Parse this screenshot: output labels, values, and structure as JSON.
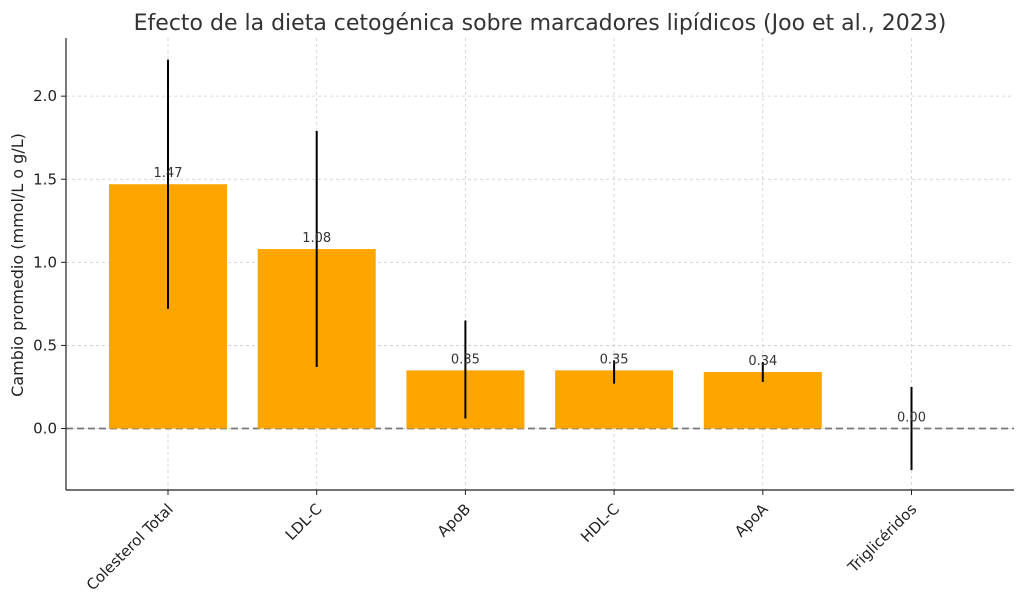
{
  "chart_data": {
    "type": "bar",
    "title": "Efecto de la dieta cetogénica sobre marcadores lipídicos (Joo et al., 2023)",
    "xlabel": "",
    "ylabel": "Cambio promedio (mmol/L o g/L)",
    "categories": [
      "Colesterol Total",
      "LDL-C",
      "ApoB",
      "HDL-C",
      "ApoA",
      "Triglicéridos"
    ],
    "values": [
      1.47,
      1.08,
      0.35,
      0.35,
      0.34,
      0.0
    ],
    "value_labels": [
      "1.47",
      "1.08",
      "0.35",
      "0.35",
      "0.34",
      "0.00"
    ],
    "error_low": [
      0.72,
      0.37,
      0.06,
      0.27,
      0.28,
      -0.25
    ],
    "error_high": [
      2.22,
      1.79,
      0.65,
      0.41,
      0.4,
      0.25
    ],
    "ylim": [
      -0.37,
      2.35
    ],
    "yticks": [
      0.0,
      0.5,
      1.0,
      1.5,
      2.0
    ],
    "ytick_labels": [
      "0.0",
      "0.5",
      "1.0",
      "1.5",
      "2.0"
    ],
    "grid": true,
    "bar_color": "#FFA500",
    "error_color": "#000000",
    "reference_line": {
      "y": 0,
      "style": "dashed",
      "color": "#777777"
    }
  }
}
